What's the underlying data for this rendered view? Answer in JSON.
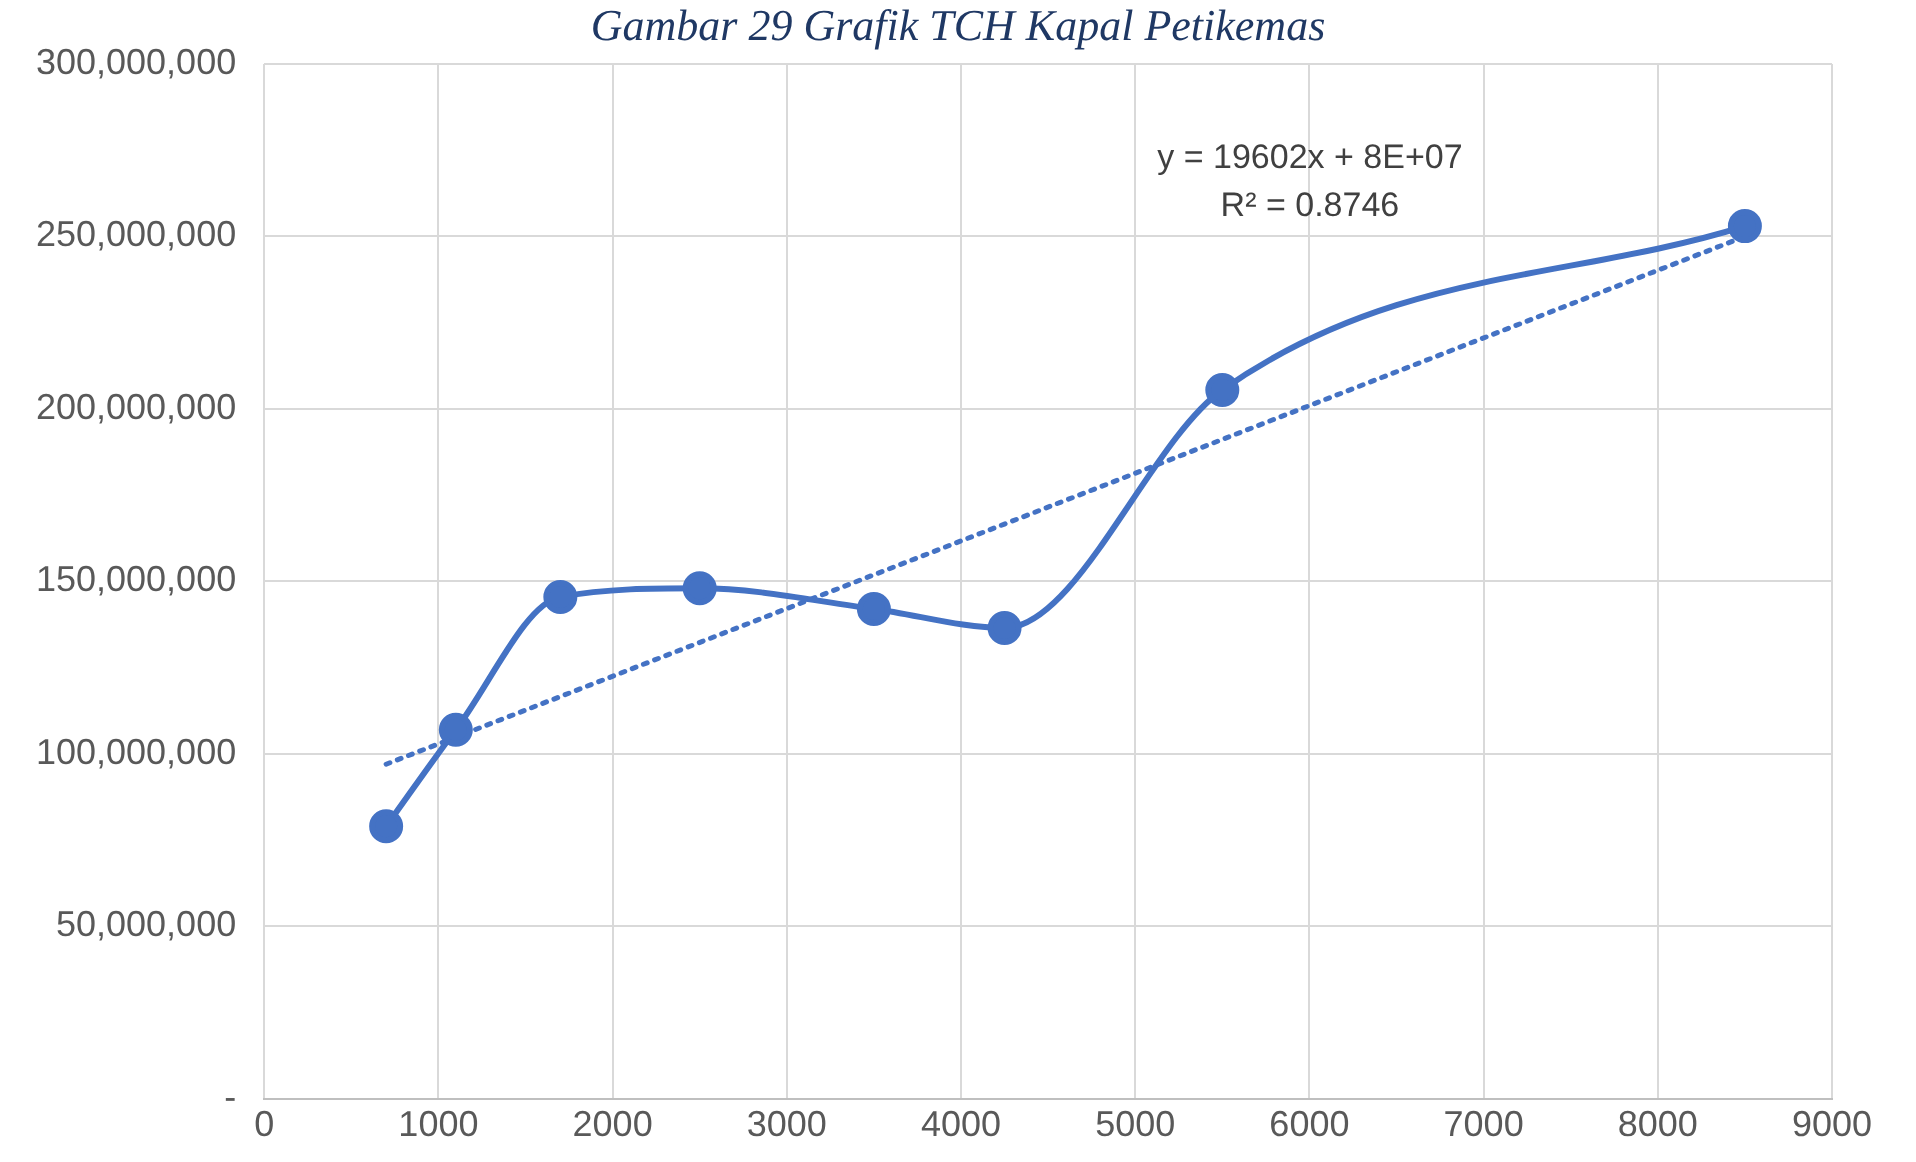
{
  "chart_data": {
    "type": "line",
    "title": "Gambar 29 Grafik TCH Kapal Petikemas",
    "x": [
      700,
      1100,
      1700,
      2500,
      3500,
      4250,
      5500,
      8500
    ],
    "series": [
      {
        "color": "#4472c4",
        "marker": "circle",
        "line_style": "solid",
        "values": [
          79000000,
          107000000,
          145500000,
          148000000,
          142000000,
          136500000,
          205500000,
          253000000
        ]
      },
      {
        "color": "#4472c4",
        "marker": "none",
        "line_style": "dotted",
        "x": [
          700,
          8500
        ],
        "values": [
          97000000,
          250000000
        ]
      }
    ],
    "annotations": [
      "y = 19602x + 8E+07",
      "R² = 0.8746"
    ],
    "xlim": [
      0,
      9000
    ],
    "xticks": [
      0,
      1000,
      2000,
      3000,
      4000,
      5000,
      6000,
      7000,
      8000,
      9000
    ],
    "ylim": [
      0,
      300000000
    ],
    "yticks": [
      {
        "value": 0,
        "label": "-"
      },
      {
        "value": 50000000,
        "label": "50,000,000"
      },
      {
        "value": 100000000,
        "label": "100,000,000"
      },
      {
        "value": 150000000,
        "label": "150,000,000"
      },
      {
        "value": 200000000,
        "label": "200,000,000"
      },
      {
        "value": 250000000,
        "label": "250,000,000"
      },
      {
        "value": 300000000,
        "label": "300,000,000"
      }
    ],
    "grid": true,
    "legend": false
  }
}
